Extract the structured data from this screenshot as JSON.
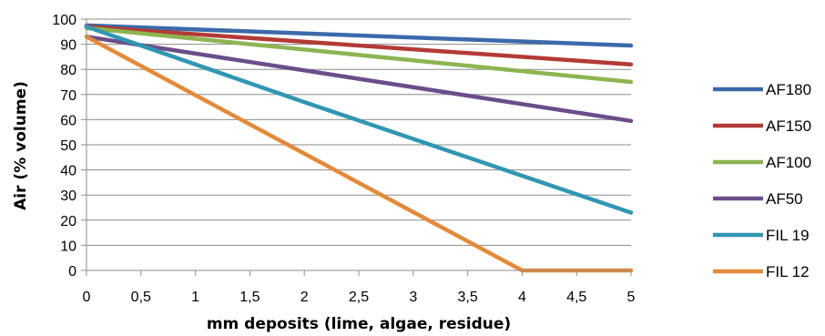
{
  "chart_data": {
    "type": "line",
    "xlabel": "mm deposits (lime, algae, residue)",
    "ylabel": "Air (% volume)",
    "ylim": [
      0,
      100
    ],
    "xlim": [
      0,
      5
    ],
    "x_ticks": [
      "0",
      "0,5",
      "1",
      "1,5",
      "2",
      "2,5",
      "3",
      "3,5",
      "4",
      "4,5",
      "5"
    ],
    "y_ticks": [
      "0",
      "10",
      "20",
      "30",
      "40",
      "50",
      "60",
      "70",
      "80",
      "90",
      "100"
    ],
    "grid": "horizontal",
    "legend_position": "right",
    "series": [
      {
        "name": "AF180",
        "color": "#3b6aab",
        "points": [
          [
            0,
            97.5
          ],
          [
            5,
            89.5
          ]
        ]
      },
      {
        "name": "AF150",
        "color": "#b33a35",
        "points": [
          [
            0,
            97
          ],
          [
            5,
            82
          ]
        ]
      },
      {
        "name": "AF100",
        "color": "#8db451",
        "points": [
          [
            0,
            96.5
          ],
          [
            5,
            75
          ]
        ]
      },
      {
        "name": "AF50",
        "color": "#6b4d8a",
        "points": [
          [
            0,
            93
          ],
          [
            5,
            59.5
          ]
        ]
      },
      {
        "name": "FIL 19",
        "color": "#3196b2",
        "points": [
          [
            0,
            97
          ],
          [
            2,
            67
          ],
          [
            5,
            23
          ]
        ]
      },
      {
        "name": "FIL 12",
        "color": "#e38a3a",
        "points": [
          [
            0,
            93
          ],
          [
            4,
            0
          ],
          [
            5,
            0
          ]
        ]
      }
    ]
  }
}
